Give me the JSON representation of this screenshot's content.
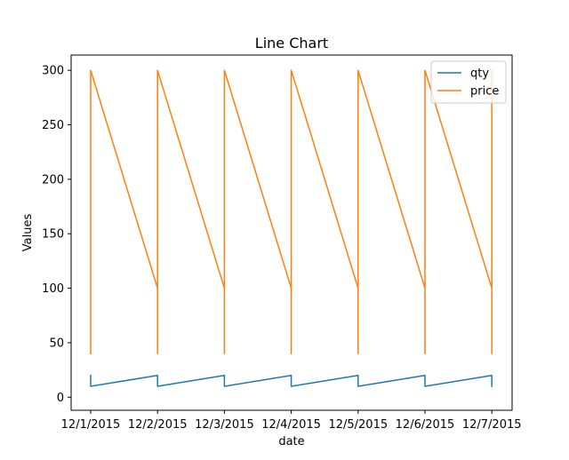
{
  "chart_data": {
    "type": "line",
    "title": "Line Chart",
    "xlabel": "date",
    "ylabel": "Values",
    "x_tick_labels": [
      "12/1/2015",
      "12/2/2015",
      "12/3/2015",
      "12/4/2015",
      "12/5/2015",
      "12/6/2015",
      "12/7/2015"
    ],
    "ylim": [
      -12,
      314
    ],
    "yticks": [
      0,
      50,
      100,
      150,
      200,
      250,
      300
    ],
    "legend_position": "top-right",
    "series": [
      {
        "name": "qty",
        "color": "#1f77b4",
        "points": [
          {
            "x": "12/1/2015",
            "y": 20
          },
          {
            "x": "12/1/2015",
            "y": 10
          },
          {
            "x": "12/2/2015",
            "y": 20
          },
          {
            "x": "12/2/2015",
            "y": 10
          },
          {
            "x": "12/3/2015",
            "y": 20
          },
          {
            "x": "12/3/2015",
            "y": 10
          },
          {
            "x": "12/4/2015",
            "y": 20
          },
          {
            "x": "12/4/2015",
            "y": 10
          },
          {
            "x": "12/5/2015",
            "y": 20
          },
          {
            "x": "12/5/2015",
            "y": 10
          },
          {
            "x": "12/6/2015",
            "y": 20
          },
          {
            "x": "12/6/2015",
            "y": 10
          },
          {
            "x": "12/7/2015",
            "y": 20
          },
          {
            "x": "12/7/2015",
            "y": 10
          }
        ]
      },
      {
        "name": "price",
        "color": "#ff7f0e",
        "points": [
          {
            "x": "12/1/2015",
            "y": 40
          },
          {
            "x": "12/1/2015",
            "y": 200
          },
          {
            "x": "12/1/2015",
            "y": 300
          },
          {
            "x": "12/2/2015",
            "y": 100
          },
          {
            "x": "12/2/2015",
            "y": 40
          },
          {
            "x": "12/2/2015",
            "y": 200
          },
          {
            "x": "12/2/2015",
            "y": 300
          },
          {
            "x": "12/3/2015",
            "y": 100
          },
          {
            "x": "12/3/2015",
            "y": 40
          },
          {
            "x": "12/3/2015",
            "y": 200
          },
          {
            "x": "12/3/2015",
            "y": 300
          },
          {
            "x": "12/4/2015",
            "y": 100
          },
          {
            "x": "12/4/2015",
            "y": 40
          },
          {
            "x": "12/4/2015",
            "y": 200
          },
          {
            "x": "12/4/2015",
            "y": 300
          },
          {
            "x": "12/5/2015",
            "y": 100
          },
          {
            "x": "12/5/2015",
            "y": 40
          },
          {
            "x": "12/5/2015",
            "y": 200
          },
          {
            "x": "12/5/2015",
            "y": 300
          },
          {
            "x": "12/6/2015",
            "y": 100
          },
          {
            "x": "12/6/2015",
            "y": 40
          },
          {
            "x": "12/6/2015",
            "y": 200
          },
          {
            "x": "12/6/2015",
            "y": 300
          },
          {
            "x": "12/7/2015",
            "y": 100
          },
          {
            "x": "12/7/2015",
            "y": 40
          },
          {
            "x": "12/7/2015",
            "y": 200
          },
          {
            "x": "12/7/2015",
            "y": 300
          }
        ]
      }
    ]
  }
}
